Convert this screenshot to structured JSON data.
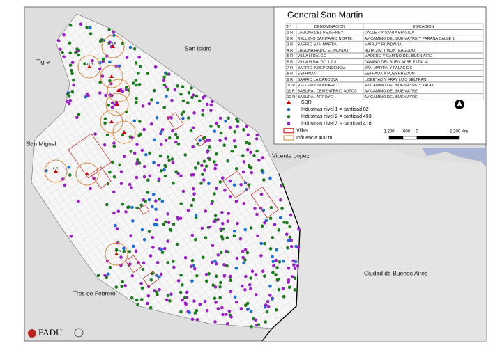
{
  "title": "General San Martin",
  "table": {
    "headers": [
      "N°",
      "DENOMINACION",
      "UBICACION"
    ],
    "rows": [
      [
        "1 R",
        "LAGUNA DEL PEJERREY",
        "CALLE 4 Y SANTA BRIGIDA"
      ],
      [
        "2 R",
        "RELLENO SANITARIO NORTE",
        "AV CAMINO DEL BUEN AYRE Y PARANA CALLE 1"
      ],
      [
        "3 R",
        "BARRIO SAN MARTIN",
        "MAIPU Y RIVADAVIA"
      ],
      [
        "4 R",
        "LAGUNA RADIO EL MUNDO",
        "RUTA 202 Y MONTEAGUDO"
      ],
      [
        "5 R",
        "VILLA HIDALGO",
        "MADERO Y CAMINO DEL BUEN AIRE"
      ],
      [
        "6 R",
        "VILLA HIDALGO 1 2 3",
        "CAMINO DEL BUEN AYRE E ITALIA"
      ],
      [
        "7 R",
        "BARRIO INDEPENDENCIA",
        "SAN MARTIN Y PALACIOS"
      ],
      [
        "8 R",
        "ESTRADA",
        "ESTRADA Y PUEYRREDON"
      ],
      [
        "9 R",
        "BARRIO LA CARCOVA",
        "LIBERTAD Y FRAY LUIS BELTRAN"
      ],
      [
        "10 R",
        "RELLENO SANITARIO",
        "AV CAMINO DEL BUEN AYRE Y YATAY"
      ],
      [
        "11 R",
        "BASURAL CEMENTERIO AUTOS",
        "AV CAMINO DEL BUEN AYRE"
      ],
      [
        "12 R",
        "BASURAL ARROYO",
        "AV CAMINO DEL BUEN AYRE"
      ]
    ]
  },
  "legend": [
    "SDR",
    "Industrias  nivel 1 = cantidad 82",
    "Industrias nivel 2 = cantidad 493",
    "Industrias nivel 3 = cantidad 416",
    "Villas",
    "Influencia 400 m"
  ],
  "scale_labels": [
    "1.200",
    "600",
    "0",
    "1.200 Km"
  ],
  "place_labels": [
    "Tigre",
    "San Isidro",
    "San Miguel",
    "Vicente Lopez",
    "Tres de Febrero",
    "Ciudad de Buenos Aires"
  ],
  "site_labels": [
    "9 R",
    "12 R",
    "2 R",
    "3 R"
  ],
  "logo": "FADU"
}
